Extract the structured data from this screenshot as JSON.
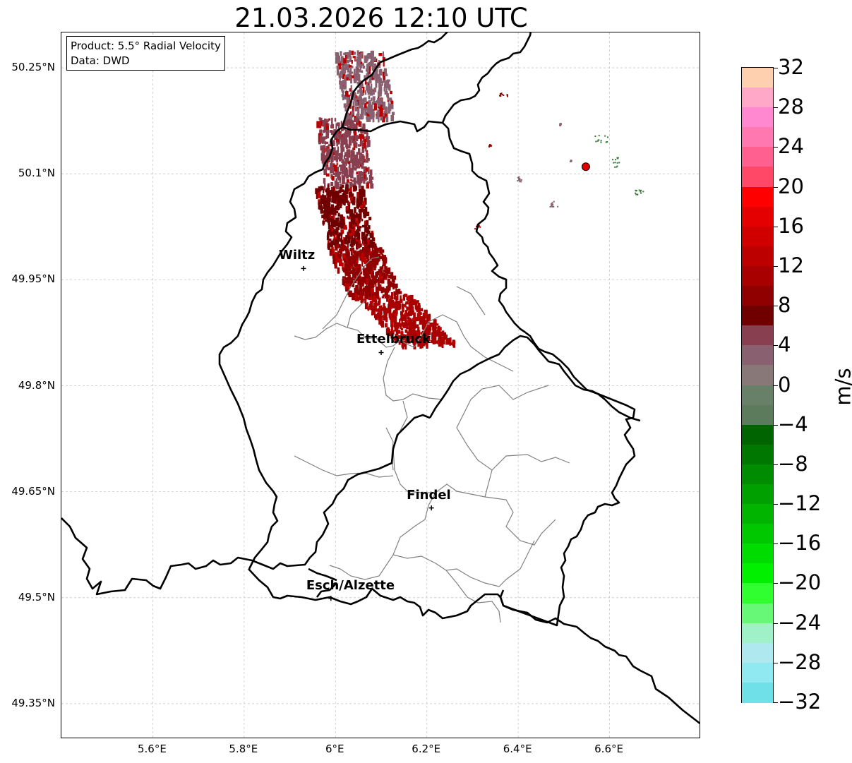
{
  "title": "21.03.2026 12:10 UTC",
  "info": {
    "product": "Product: 5.5° Radial Velocity",
    "data": "Data: DWD"
  },
  "map_extent": {
    "lon_min": 5.4,
    "lon_max": 6.8,
    "lat_min": 49.3,
    "lat_max": 50.3
  },
  "axes": {
    "lat_ticks": [
      {
        "value": 50.25,
        "label": "50.25°N"
      },
      {
        "value": 50.1,
        "label": "50.1°N"
      },
      {
        "value": 49.95,
        "label": "49.95°N"
      },
      {
        "value": 49.8,
        "label": "49.8°N"
      },
      {
        "value": 49.65,
        "label": "49.65°N"
      },
      {
        "value": 49.5,
        "label": "49.5°N"
      },
      {
        "value": 49.35,
        "label": "49.35°N"
      }
    ],
    "lon_ticks": [
      {
        "value": 5.6,
        "label": "5.6°E"
      },
      {
        "value": 5.8,
        "label": "5.8°E"
      },
      {
        "value": 6.0,
        "label": "6°E"
      },
      {
        "value": 6.2,
        "label": "6.2°E"
      },
      {
        "value": 6.4,
        "label": "6.4°E"
      },
      {
        "value": 6.6,
        "label": "6.6°E"
      }
    ]
  },
  "cities": [
    {
      "name": "Wiltz",
      "lon": 5.93,
      "lat": 49.966
    },
    {
      "name": "Ettelbruck",
      "lon": 6.1,
      "lat": 49.847
    },
    {
      "name": "Findel",
      "lon": 6.21,
      "lat": 49.627
    },
    {
      "name": "Esch/Alzette",
      "lon": 5.99,
      "lat": 49.499
    }
  ],
  "radar_site": {
    "lon": 6.548,
    "lat": 50.11,
    "color": "#e00000"
  },
  "colorbar": {
    "unit": "m/s",
    "min": -32,
    "max": 32,
    "tick_labels": [
      "32",
      "28",
      "24",
      "20",
      "16",
      "12",
      "8",
      "4",
      "0",
      "−4",
      "−8",
      "−12",
      "−16",
      "−20",
      "−24",
      "−28",
      "−32"
    ],
    "colors_top_to_bottom": [
      "#ffd0b0",
      "#ffa8c8",
      "#ff88d0",
      "#ff78b0",
      "#ff6090",
      "#ff4868",
      "#ff0000",
      "#e40000",
      "#d00000",
      "#bc0000",
      "#a80000",
      "#900000",
      "#700000",
      "#884050",
      "#886070",
      "#887878",
      "#688068",
      "#5c7a5c",
      "#006400",
      "#007800",
      "#008c00",
      "#00a000",
      "#00b400",
      "#00c800",
      "#00dc00",
      "#00f000",
      "#30ff30",
      "#68f878",
      "#a0f0c8",
      "#b0e8f0",
      "#90e8f0",
      "#70e0e8"
    ]
  },
  "colors": {
    "border": "#000000",
    "region": "#808080",
    "grid": "#c8c8c8"
  }
}
